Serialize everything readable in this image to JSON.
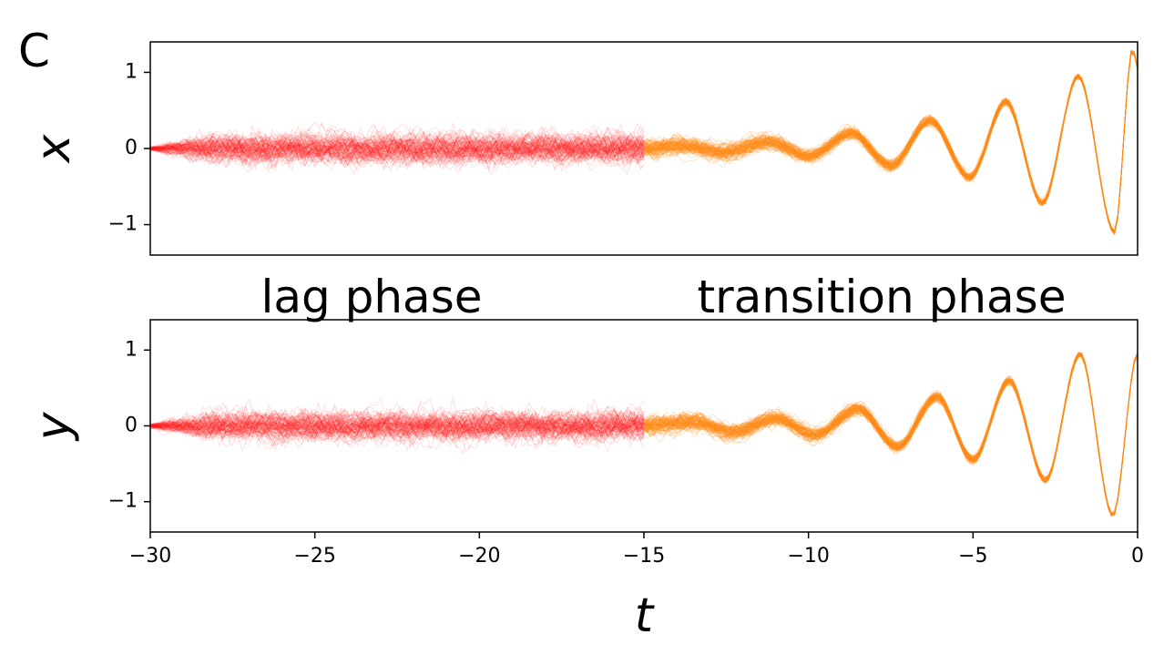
{
  "panel_label": "C",
  "phase_labels": {
    "lag": "lag phase",
    "transition": "transition phase"
  },
  "colors": {
    "lag": "#ff1a1a",
    "transition": "#ff8c1a",
    "frame": "#000000"
  },
  "chart_data": [
    {
      "type": "line",
      "ylabel": "x",
      "xlabel": "",
      "xlim": [
        -30,
        0
      ],
      "ylim": [
        -1.4,
        1.4
      ],
      "yticks": [
        -1,
        0,
        1
      ],
      "ytick_labels": [
        "−1",
        "0",
        "1"
      ],
      "show_xticks": false,
      "grid": false,
      "series": [
        {
          "phase": "lag",
          "color": "#ff1a1a",
          "x": [
            -30,
            -25,
            -20,
            -15
          ],
          "y_mean": [
            0,
            0,
            0,
            0
          ],
          "noise_sd": 0.12,
          "n_realizations": 100
        },
        {
          "phase": "transition",
          "color": "#ff8c1a",
          "x": [
            -15,
            -13.8,
            -12.6,
            -11.2,
            -10,
            -8.7,
            -7.5,
            -6.3,
            -5.1,
            -4,
            -2.9,
            -1.8,
            -0.7,
            -0.15,
            0
          ],
          "y_mean": [
            0,
            0.04,
            -0.05,
            0.08,
            -0.1,
            0.2,
            -0.22,
            0.37,
            -0.38,
            0.62,
            -0.72,
            0.95,
            -1.1,
            1.32,
            1.05
          ],
          "noise_sd": 0.08,
          "n_realizations": 100
        }
      ]
    },
    {
      "type": "line",
      "ylabel": "y",
      "xlabel": "t",
      "xlim": [
        -30,
        0
      ],
      "ylim": [
        -1.4,
        1.4
      ],
      "yticks": [
        -1,
        0,
        1
      ],
      "ytick_labels": [
        "−1",
        "0",
        "1"
      ],
      "xticks": [
        -30,
        -25,
        -20,
        -15,
        -10,
        -5,
        0
      ],
      "xtick_labels": [
        "−30",
        "−25",
        "−20",
        "−15",
        "−10",
        "−5",
        "0"
      ],
      "show_xticks": true,
      "grid": false,
      "series": [
        {
          "phase": "lag",
          "color": "#ff1a1a",
          "x": [
            -30,
            -25,
            -20,
            -15
          ],
          "y_mean": [
            0,
            0,
            0,
            0
          ],
          "noise_sd": 0.12,
          "n_realizations": 100
        },
        {
          "phase": "transition",
          "color": "#ff8c1a",
          "x": [
            -15,
            -13.5,
            -12.3,
            -11,
            -9.8,
            -8.5,
            -7.3,
            -6.1,
            -5,
            -3.9,
            -2.8,
            -1.75,
            -0.75,
            0
          ],
          "y_mean": [
            0,
            0.06,
            -0.08,
            0.1,
            -0.12,
            0.22,
            -0.28,
            0.38,
            -0.45,
            0.6,
            -0.72,
            0.95,
            -1.18,
            0.95
          ],
          "noise_sd": 0.08,
          "n_realizations": 100
        }
      ]
    }
  ]
}
